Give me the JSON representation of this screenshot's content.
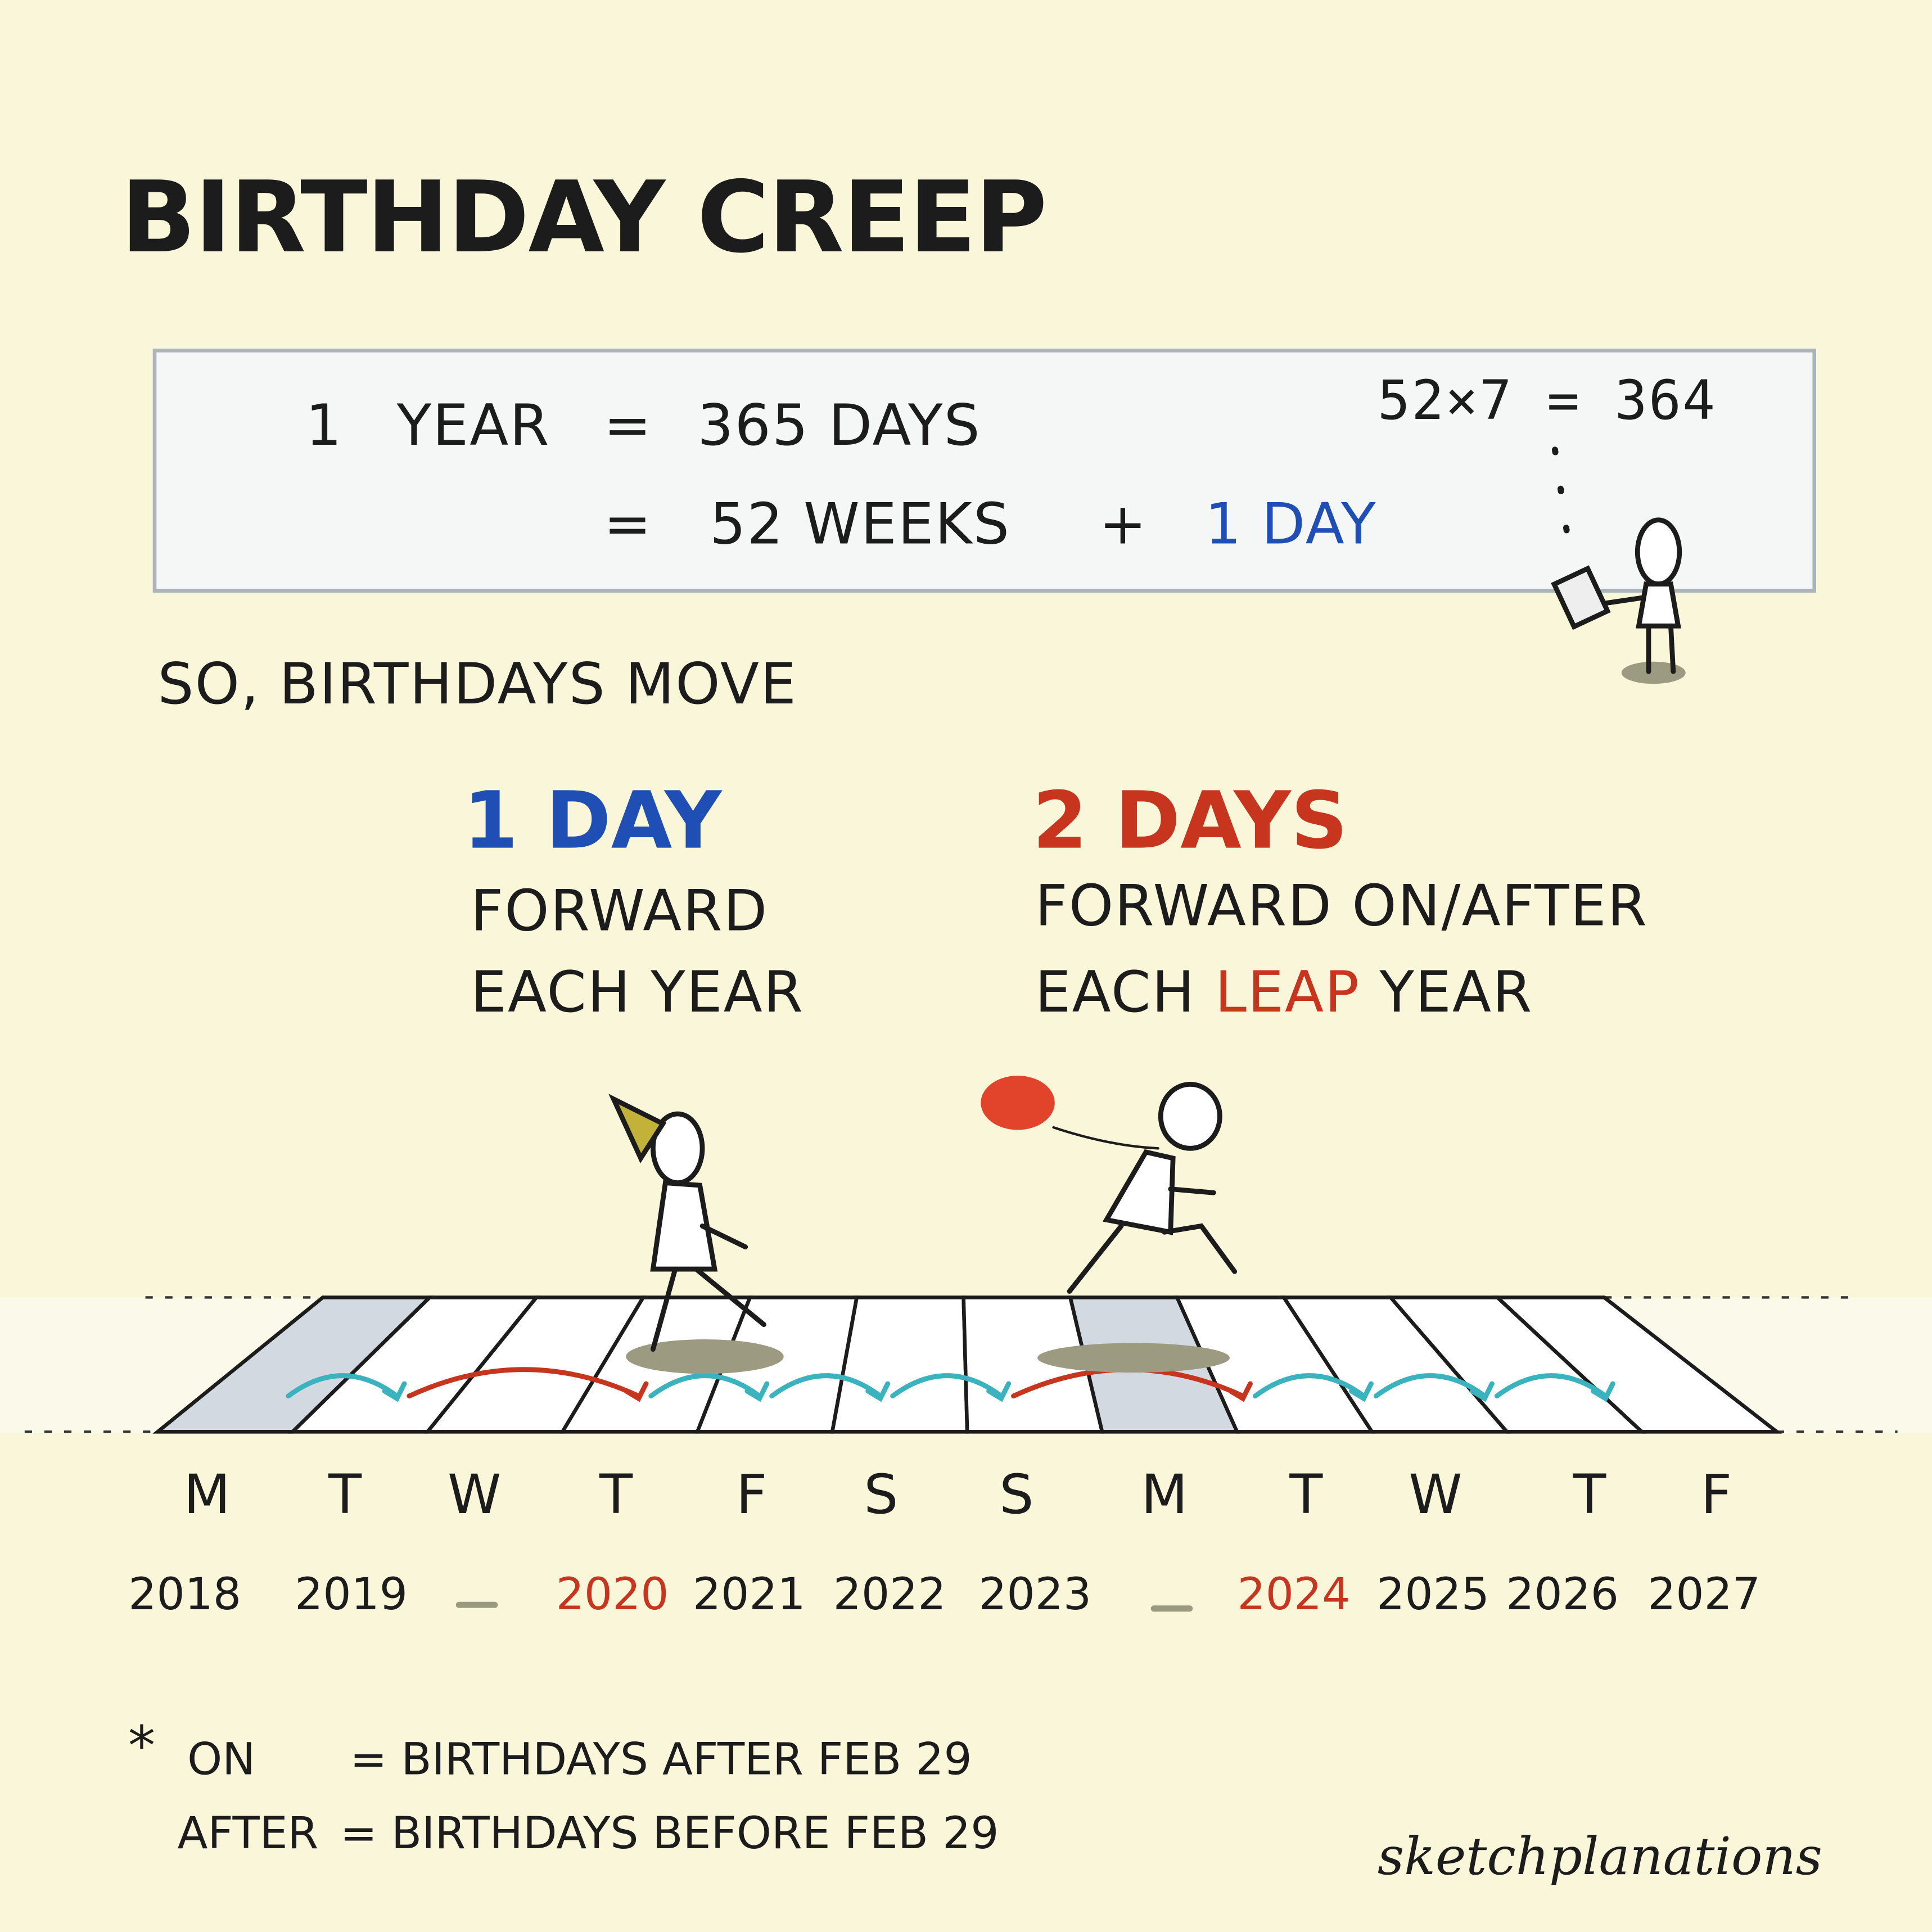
{
  "title": "BIRTHDAY CREEP",
  "equation_box": {
    "line1_lhs": "1",
    "line1_unit": "YEAR",
    "eq1": "=",
    "line1_rhs": "365 DAYS",
    "eq2": "=",
    "line2_weeks": "52 WEEKS",
    "plus": "+",
    "line2_day": "1 DAY",
    "calc": "52×7 = 364"
  },
  "so_text": "SO, BIRTHDAYS MOVE",
  "col_left": {
    "amount": "1 DAY",
    "line1": "FORWARD",
    "line2": "EACH YEAR"
  },
  "col_right": {
    "amount": "2 DAYS",
    "line1": "FORWARD ON/AFTER",
    "line2_a": "EACH",
    "line2_leap": "LEAP",
    "line2_b": "YEAR"
  },
  "timeline": {
    "days": [
      "M",
      "T",
      "W",
      "T",
      "F",
      "S",
      "S",
      "M",
      "T",
      "W",
      "T",
      "F"
    ],
    "years": [
      {
        "label": "2018",
        "leap": false
      },
      {
        "label": "2019",
        "leap": false
      },
      {
        "label": "2020",
        "leap": true
      },
      {
        "label": "2021",
        "leap": false
      },
      {
        "label": "2022",
        "leap": false
      },
      {
        "label": "2023",
        "leap": false
      },
      {
        "label": "2024",
        "leap": true
      },
      {
        "label": "2025",
        "leap": false
      },
      {
        "label": "2026",
        "leap": false
      },
      {
        "label": "2027",
        "leap": false
      }
    ],
    "highlighted_days": [
      0,
      7
    ],
    "colors": {
      "one_day": "#3ab3bf",
      "two_days": "#c8351f",
      "highlight": "#d3d9e0"
    }
  },
  "footnote": {
    "star": "*",
    "on_label": "ON",
    "on_def": "= BIRTHDAYS AFTER FEB 29",
    "after_label": "AFTER",
    "after_def": "= BIRTHDAYS BEFORE FEB 29"
  },
  "brand": "sketchplanations"
}
